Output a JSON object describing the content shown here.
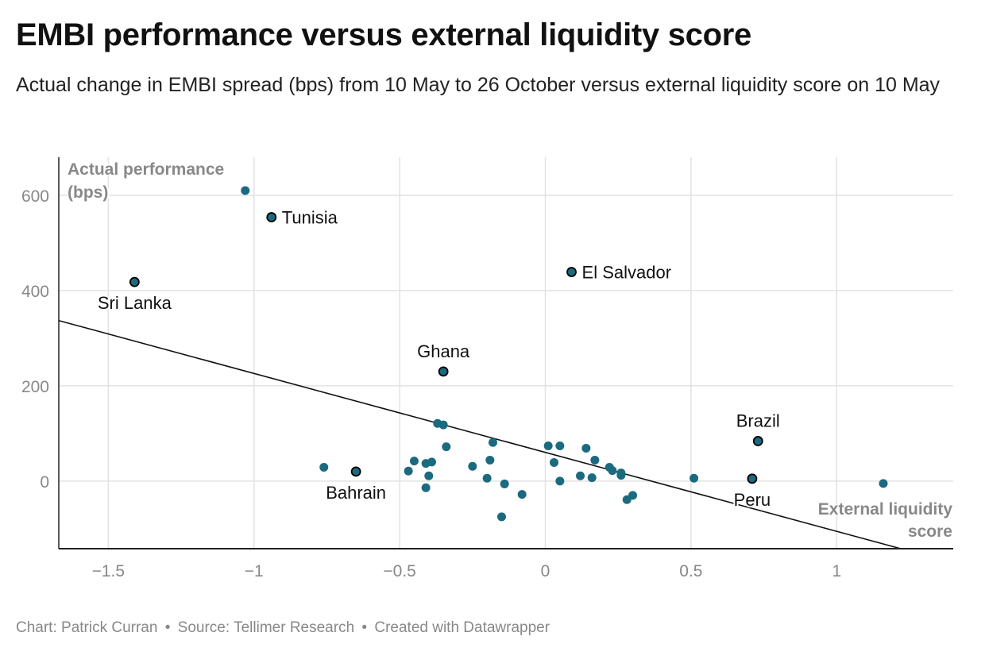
{
  "header": {
    "title": "EMBI performance versus external liquidity score",
    "subtitle": "Actual change in EMBI spread (bps) from 10 May to 26 October versus external liquidity score on 10 May"
  },
  "footer": {
    "chart_credit": "Chart: Patrick Curran",
    "separator": "•",
    "source": "Source: Tellimer Research",
    "created_with": "Created with Datawrapper"
  },
  "colors": {
    "point": "#1b6a80",
    "grid": "#e2e2e2",
    "axis": "#222222",
    "axis_title": "#888888",
    "tick_text": "#888888",
    "trendline": "#111111"
  },
  "chart_data": {
    "type": "scatter",
    "xlabel": "External liquidity score",
    "ylabel": "Actual performance (bps)",
    "xlim": [
      -1.67,
      1.4
    ],
    "ylim": [
      -142,
      680
    ],
    "x_ticks": [
      {
        "value": -1.5,
        "label": "−1.5"
      },
      {
        "value": -1,
        "label": "−1"
      },
      {
        "value": -0.5,
        "label": "−0.5"
      },
      {
        "value": 0,
        "label": "0"
      },
      {
        "value": 0.5,
        "label": "0.5"
      },
      {
        "value": 1,
        "label": "1"
      }
    ],
    "y_ticks": [
      {
        "value": 0,
        "label": "0"
      },
      {
        "value": 200,
        "label": "200"
      },
      {
        "value": 400,
        "label": "400"
      },
      {
        "value": 600,
        "label": "600"
      }
    ],
    "trendline": {
      "x1": -1.67,
      "y1": 337,
      "x2": 1.22,
      "y2": -142
    },
    "labeled_points": [
      {
        "label": "Tunisia",
        "x": -0.94,
        "y": 554,
        "label_pos": "right"
      },
      {
        "label": "Sri Lanka",
        "x": -1.41,
        "y": 418,
        "label_pos": "below"
      },
      {
        "label": "El Salvador",
        "x": 0.09,
        "y": 439,
        "label_pos": "right"
      },
      {
        "label": "Ghana",
        "x": -0.35,
        "y": 230,
        "label_pos": "above"
      },
      {
        "label": "Brazil",
        "x": 0.73,
        "y": 84,
        "label_pos": "above"
      },
      {
        "label": "Bahrain",
        "x": -0.65,
        "y": 20,
        "label_pos": "below"
      },
      {
        "label": "Peru",
        "x": 0.71,
        "y": 5,
        "label_pos": "below"
      }
    ],
    "points": [
      {
        "x": -1.03,
        "y": 610
      },
      {
        "x": -0.37,
        "y": 121
      },
      {
        "x": -0.35,
        "y": 118
      },
      {
        "x": -0.34,
        "y": 72
      },
      {
        "x": -0.18,
        "y": 81
      },
      {
        "x": -0.76,
        "y": 29
      },
      {
        "x": -0.45,
        "y": 42
      },
      {
        "x": -0.47,
        "y": 21
      },
      {
        "x": -0.41,
        "y": 37
      },
      {
        "x": -0.39,
        "y": 40
      },
      {
        "x": -0.4,
        "y": 11
      },
      {
        "x": -0.41,
        "y": -14
      },
      {
        "x": -0.25,
        "y": 31
      },
      {
        "x": -0.19,
        "y": 44
      },
      {
        "x": -0.2,
        "y": 6
      },
      {
        "x": -0.14,
        "y": -6
      },
      {
        "x": -0.08,
        "y": -28
      },
      {
        "x": -0.15,
        "y": -75
      },
      {
        "x": 0.01,
        "y": 74
      },
      {
        "x": 0.05,
        "y": 74
      },
      {
        "x": 0.03,
        "y": 39
      },
      {
        "x": 0.05,
        "y": 0
      },
      {
        "x": 0.12,
        "y": 11
      },
      {
        "x": 0.14,
        "y": 69
      },
      {
        "x": 0.16,
        "y": 7
      },
      {
        "x": 0.17,
        "y": 44
      },
      {
        "x": 0.22,
        "y": 29
      },
      {
        "x": 0.23,
        "y": 22
      },
      {
        "x": 0.26,
        "y": 17
      },
      {
        "x": 0.26,
        "y": 12
      },
      {
        "x": 0.28,
        "y": -39
      },
      {
        "x": 0.3,
        "y": -30
      },
      {
        "x": 0.51,
        "y": 6
      },
      {
        "x": 1.16,
        "y": -5
      }
    ]
  }
}
